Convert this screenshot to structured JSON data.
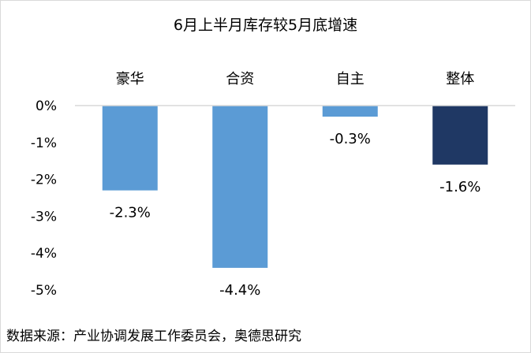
{
  "chart_data": {
    "type": "bar",
    "title": "6月上半月库存较5月底增速",
    "categories": [
      "豪华",
      "合资",
      "自主",
      "整体"
    ],
    "values": [
      -2.3,
      -4.4,
      -0.3,
      -1.6
    ],
    "value_labels": [
      "-2.3%",
      "-4.4%",
      "-0.3%",
      "-1.6%"
    ],
    "bar_colors": [
      "#5b9bd5",
      "#5b9bd5",
      "#5b9bd5",
      "#1f3864"
    ],
    "ylim": [
      -5,
      0
    ],
    "yticks": [
      0,
      -1,
      -2,
      -3,
      -4,
      -5
    ],
    "ytick_labels": [
      "0%",
      "-1%",
      "-2%",
      "-3%",
      "-4%",
      "-5%"
    ],
    "category_axis_position": "top",
    "grid": false,
    "axis_line_color": "#d9d9d9"
  },
  "source_note": "数据来源：产业协调发展工作委员会，奥德思研究"
}
